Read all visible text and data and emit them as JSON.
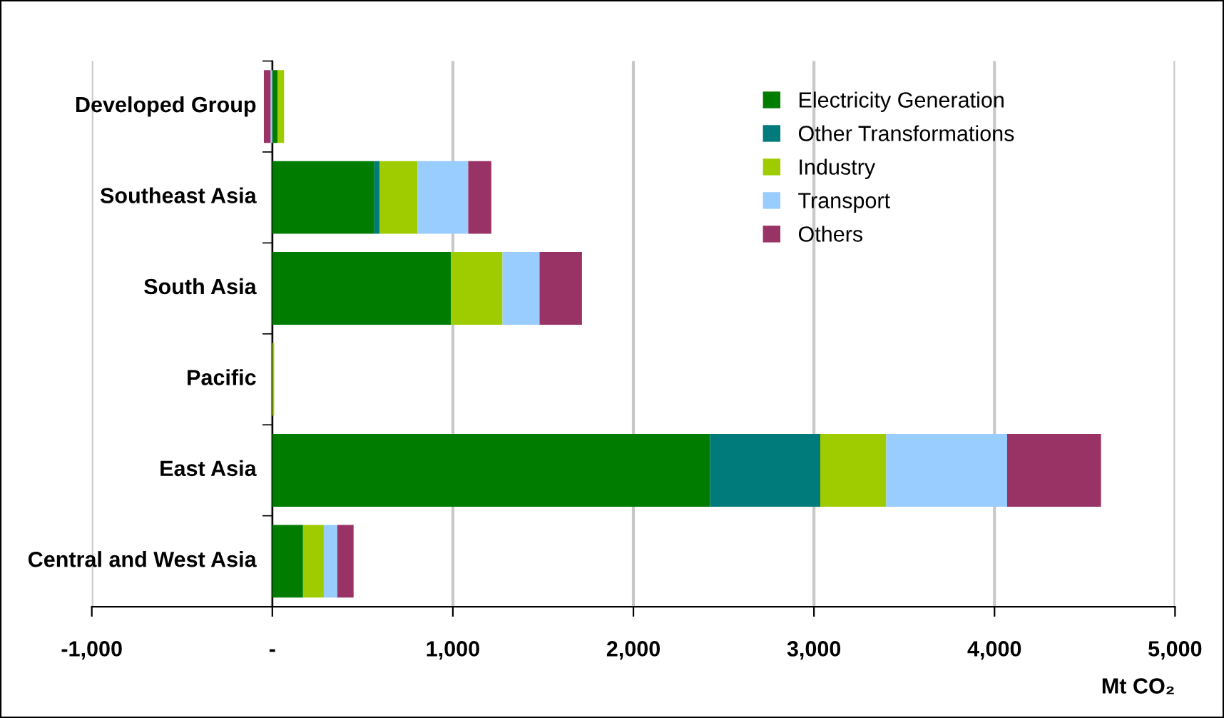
{
  "chart_data": {
    "type": "bar",
    "orientation": "horizontal",
    "stacked": true,
    "xlabel": "Mt CO₂",
    "categories": [
      "Developed Group",
      "Southeast Asia",
      "South Asia",
      "Pacific",
      "East Asia",
      "Central and West Asia"
    ],
    "series": [
      {
        "name": "Electricity Generation",
        "color": "#007d00",
        "values": [
          30,
          565,
          990,
          0,
          2425,
          170
        ]
      },
      {
        "name": "Other Transformations",
        "color": "#007b7b",
        "values": [
          0,
          30,
          0,
          0,
          610,
          0
        ]
      },
      {
        "name": "Industry",
        "color": "#9fcc00",
        "values": [
          35,
          210,
          285,
          10,
          365,
          115
        ]
      },
      {
        "name": "Transport",
        "color": "#99ccff",
        "values": [
          -10,
          280,
          205,
          0,
          670,
          75
        ]
      },
      {
        "name": "Others",
        "color": "#993366",
        "values": [
          -37,
          128,
          235,
          0,
          520,
          90
        ]
      }
    ],
    "xlim": [
      -1000,
      5000
    ],
    "xticks": [
      {
        "value": -1000,
        "label": "-1,000"
      },
      {
        "value": 0,
        "label": "-"
      },
      {
        "value": 1000,
        "label": "1,000"
      },
      {
        "value": 2000,
        "label": "2,000"
      },
      {
        "value": 3000,
        "label": "3,000"
      },
      {
        "value": 4000,
        "label": "4,000"
      },
      {
        "value": 5000,
        "label": "5,000"
      }
    ],
    "grid": "x",
    "legend": "top right"
  }
}
